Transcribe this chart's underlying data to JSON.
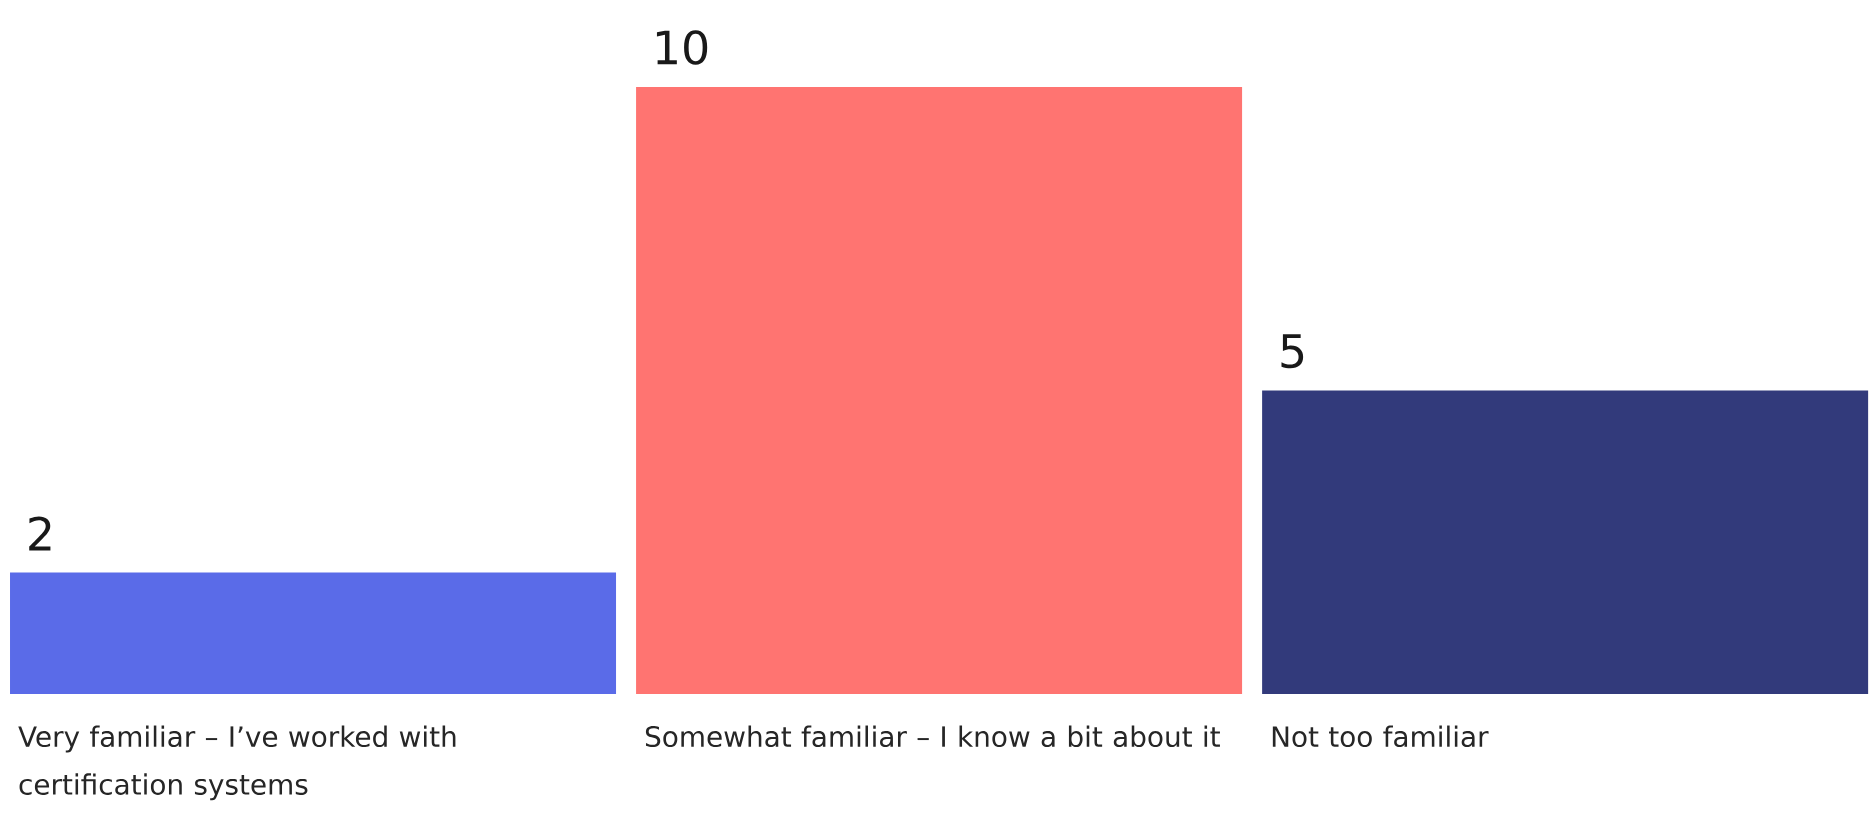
{
  "chart_data": {
    "type": "bar",
    "categories": [
      "Very familiar – I’ve worked with certification systems",
      "Somewhat familiar – I know a bit about it",
      "Not too familiar"
    ],
    "values": [
      2,
      10,
      5
    ],
    "colors": [
      "#5a6be8",
      "#ff7471",
      "#323a7b"
    ],
    "data_labels": true,
    "tick_labels": "x"
  }
}
